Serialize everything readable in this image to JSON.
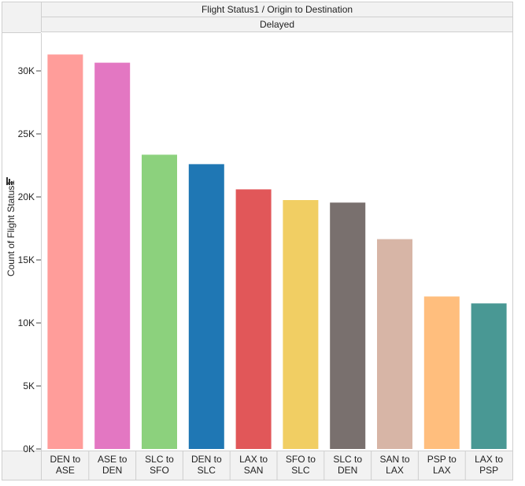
{
  "header": {
    "title": "Flight Status1  /  Origin to Destination",
    "subtitle": "Delayed"
  },
  "chart_data": {
    "type": "bar",
    "title": "Flight Status1  /  Origin to Destination",
    "facet": "Delayed",
    "ylabel": "Count of Flight Status1",
    "xlabel": "",
    "ylim": [
      0,
      32500
    ],
    "yticks": [
      0,
      5000,
      10000,
      15000,
      20000,
      25000,
      30000
    ],
    "ytick_labels": [
      "0K",
      "5K",
      "10K",
      "15K",
      "20K",
      "25K",
      "30K"
    ],
    "grid": false,
    "categories": [
      [
        "DEN to",
        "ASE"
      ],
      [
        "ASE to",
        "DEN"
      ],
      [
        "SLC to",
        "SFO"
      ],
      [
        "DEN to",
        "SLC"
      ],
      [
        "LAX to",
        "SAN"
      ],
      [
        "SFO to",
        "SLC"
      ],
      [
        "SLC to",
        "DEN"
      ],
      [
        "SAN to",
        "LAX"
      ],
      [
        "PSP to",
        "LAX"
      ],
      [
        "LAX to",
        "PSP"
      ]
    ],
    "values": [
      31300,
      30650,
      23350,
      22600,
      20600,
      19750,
      19550,
      16650,
      12100,
      11550
    ],
    "colors": [
      "#ff9d9a",
      "#e377c2",
      "#8cd17d",
      "#1f77b4",
      "#e15759",
      "#f1ce63",
      "#79706e",
      "#d7b5a6",
      "#ffbe7d",
      "#499894"
    ]
  }
}
